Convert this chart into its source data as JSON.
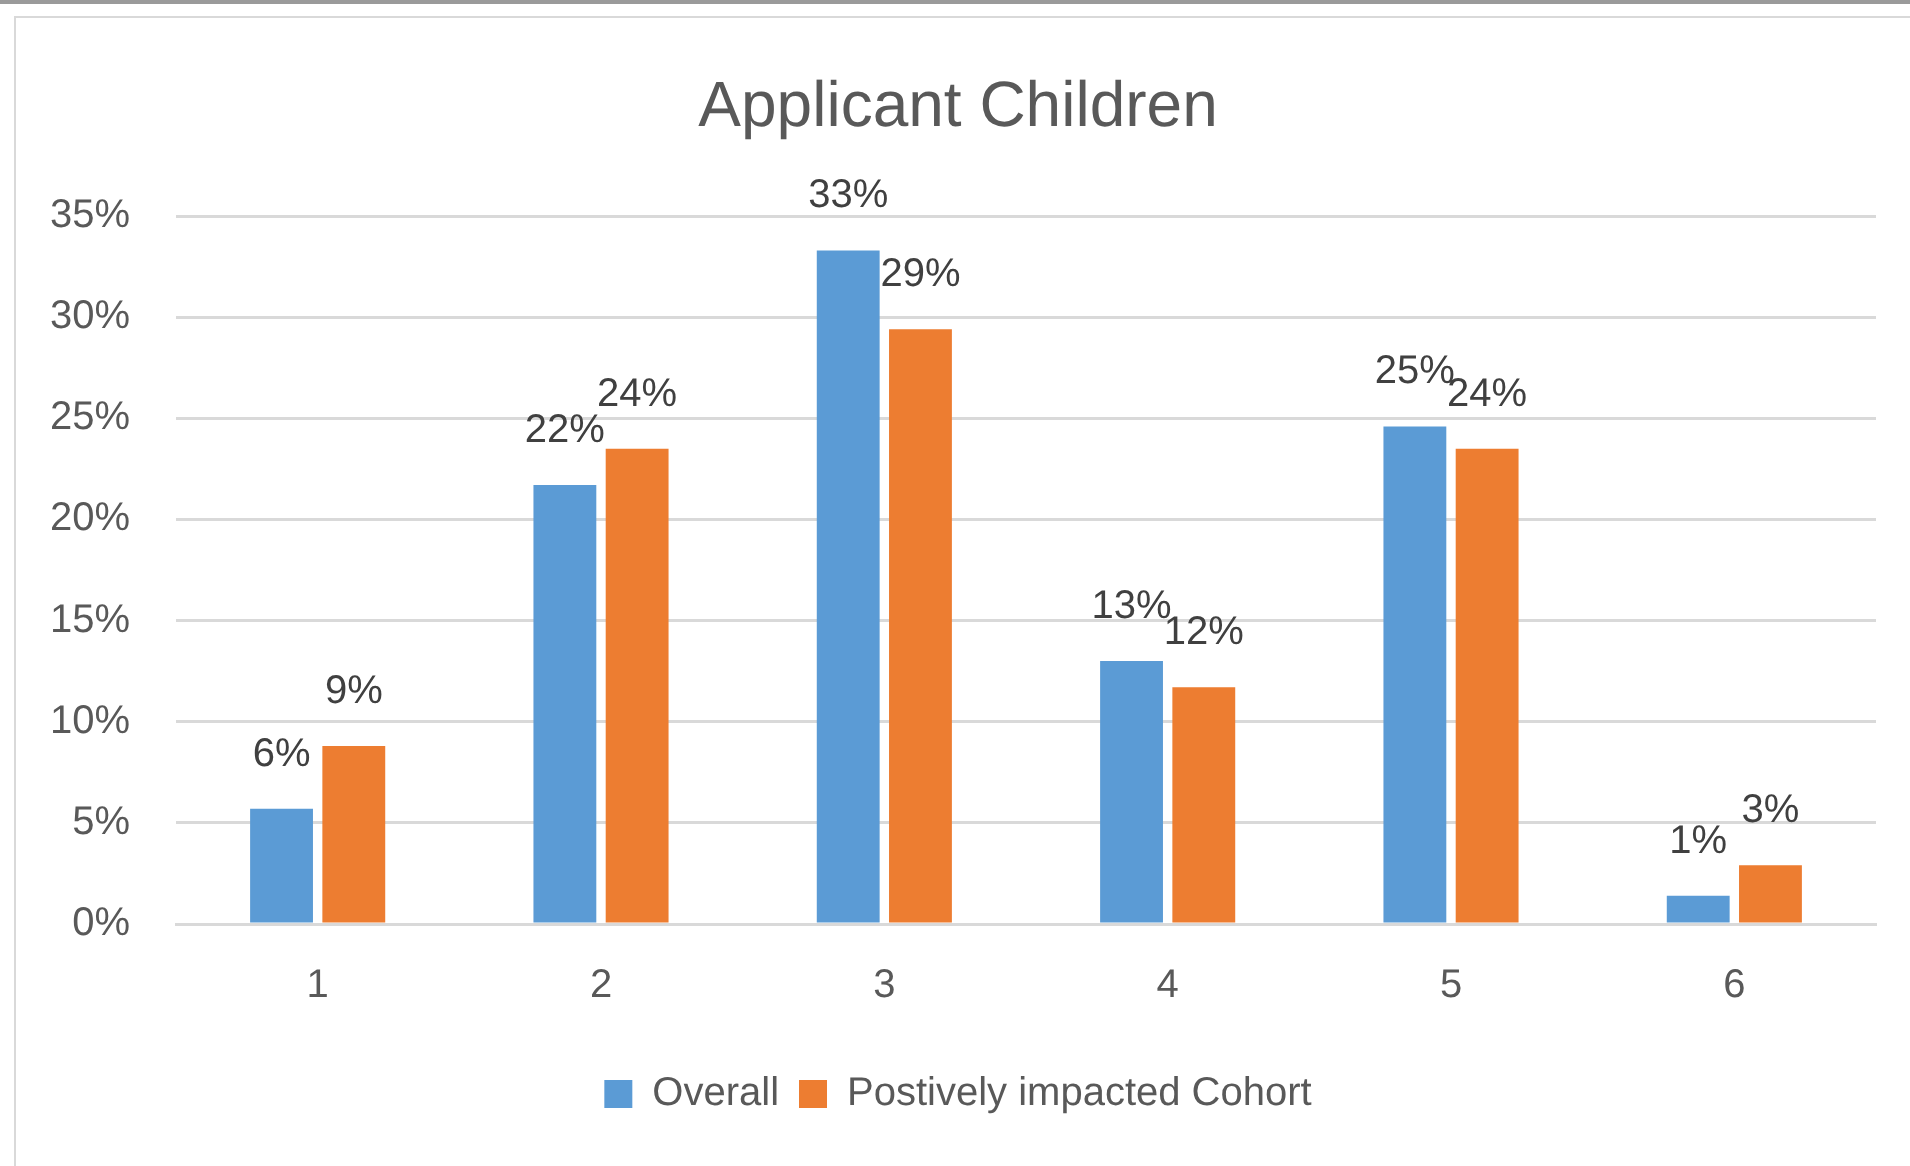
{
  "chart_data": {
    "type": "bar",
    "title": "Applicant Children",
    "categories": [
      "1",
      "2",
      "3",
      "4",
      "5",
      "6"
    ],
    "series": [
      {
        "name": "Overall",
        "color": "#5b9bd5",
        "values": [
          5.7,
          21.7,
          33.3,
          13.0,
          24.6,
          1.4
        ],
        "value_labels": [
          "6%",
          "22%",
          "33%",
          "13%",
          "25%",
          "1%"
        ]
      },
      {
        "name": "Postively impacted Cohort",
        "color": "#ed7d31",
        "values": [
          8.8,
          23.5,
          29.4,
          11.7,
          23.5,
          2.9
        ],
        "value_labels": [
          "9%",
          "24%",
          "29%",
          "12%",
          "24%",
          "3%"
        ]
      }
    ],
    "ylim": [
      0,
      35
    ],
    "yticks": [
      {
        "value": 0,
        "label": "0%"
      },
      {
        "value": 5,
        "label": "5%"
      },
      {
        "value": 10,
        "label": "10%"
      },
      {
        "value": 15,
        "label": "15%"
      },
      {
        "value": 20,
        "label": "20%"
      },
      {
        "value": 25,
        "label": "25%"
      },
      {
        "value": 30,
        "label": "30%"
      },
      {
        "value": 35,
        "label": "35%"
      }
    ],
    "grid": "y",
    "legend": "bottom"
  }
}
